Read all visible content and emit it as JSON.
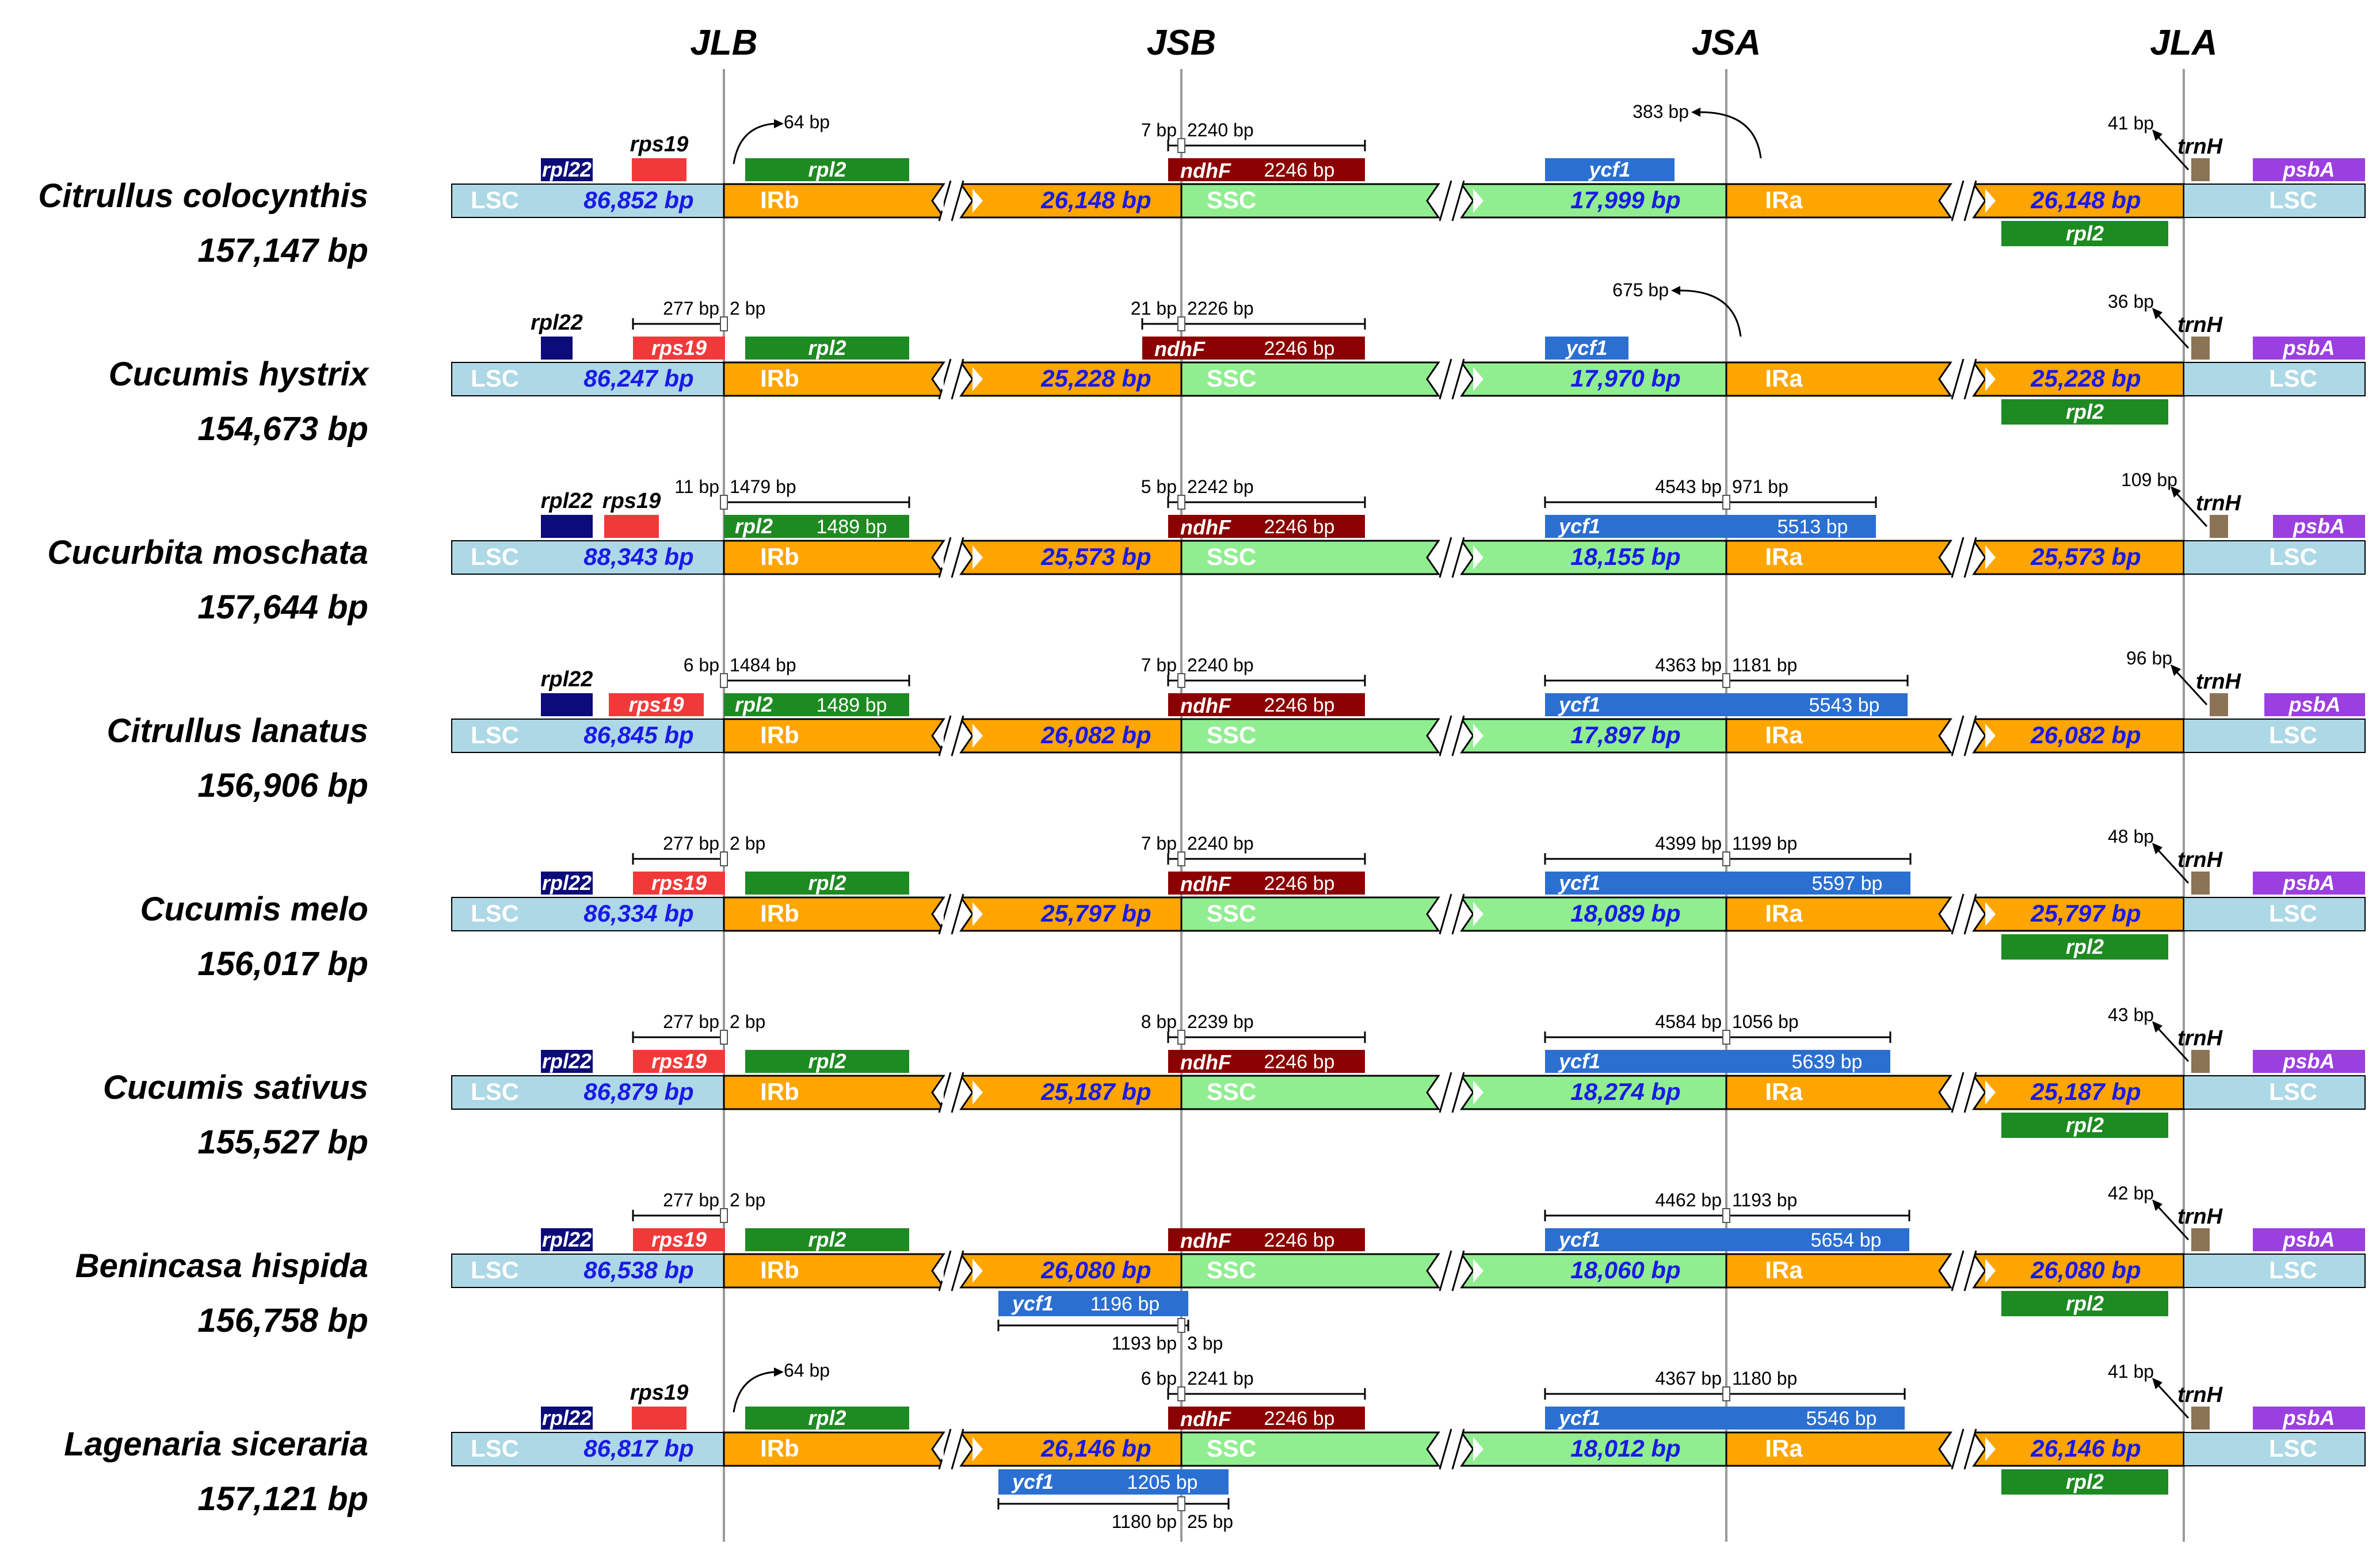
{
  "junctions": [
    "JLB",
    "JSB",
    "JSA",
    "JLA"
  ],
  "colors": {
    "LSC": "#add8e6",
    "IR": "#ffa500",
    "SSC": "#90ee90",
    "rpl22": "#0b0b7a",
    "rps19": "#f03a3a",
    "rpl2": "#1e8a22",
    "ndhF": "#8b0000",
    "ycf1": "#2b6fd1",
    "trnH": "#8b7355",
    "psbA": "#9b3fe0",
    "number": "#1a1ae6"
  },
  "region_labels": {
    "lsc": "LSC",
    "irb": "IRb",
    "ssc": "SSC",
    "ira": "IRa"
  },
  "species": [
    {
      "name": "Citrullus colocynthis",
      "size": "157,147 bp",
      "lsc": "86,852 bp",
      "irb": "26,148 bp",
      "ssc": "17,999 bp",
      "ira": "26,148 bp",
      "jlb": {
        "rpl22": "rpl22",
        "rps19_label": "rps19",
        "rpl2": "rpl2",
        "arrow": "64 bp"
      },
      "jsb": {
        "left": "7 bp",
        "right": "2240 bp",
        "ndhF": "ndhF",
        "ndhF_len": "2246 bp"
      },
      "jsa": {
        "ycf1": "ycf1",
        "arrow": "383 bp"
      },
      "jla": {
        "dist": "41 bp",
        "trnH": "trnH",
        "psbA": "psbA",
        "rpl2": "rpl2"
      }
    },
    {
      "name": "Cucumis hystrix",
      "size": "154,673 bp",
      "lsc": "86,247 bp",
      "irb": "25,228 bp",
      "ssc": "17,970 bp",
      "ira": "25,228 bp",
      "jlb": {
        "rpl22_label": "rpl22",
        "rps19": "rps19",
        "rpl2": "rpl2",
        "left": "277 bp",
        "right": "2 bp"
      },
      "jsb": {
        "left": "21 bp",
        "right": "2226 bp",
        "ndhF": "ndhF",
        "ndhF_len": "2246 bp"
      },
      "jsa": {
        "ycf1": "ycf1",
        "arrow": "675 bp"
      },
      "jla": {
        "dist": "36 bp",
        "trnH": "trnH",
        "psbA": "psbA",
        "rpl2": "rpl2"
      }
    },
    {
      "name": "Cucurbita moschata",
      "size": "157,644 bp",
      "lsc": "88,343 bp",
      "irb": "25,573 bp",
      "ssc": "18,155 bp",
      "ira": "25,573 bp",
      "jlb": {
        "rpl22_label": "rpl22",
        "rps19_label": "rps19",
        "rpl2": "rpl2",
        "rpl2_len": "1489 bp",
        "left": "11 bp",
        "right": "1479 bp"
      },
      "jsb": {
        "left": "5 bp",
        "right": "2242 bp",
        "ndhF": "ndhF",
        "ndhF_len": "2246 bp"
      },
      "jsa": {
        "ycf1": "ycf1",
        "ycf1_len": "5513 bp",
        "left": "4543 bp",
        "right": "971 bp"
      },
      "jla": {
        "dist": "109 bp",
        "trnH": "trnH",
        "psbA": "psbA"
      }
    },
    {
      "name": "Citrullus lanatus",
      "size": "156,906 bp",
      "lsc": "86,845 bp",
      "irb": "26,082 bp",
      "ssc": "17,897 bp",
      "ira": "26,082 bp",
      "jlb": {
        "rpl22_label": "rpl22",
        "rps19": "rps19",
        "rpl2": "rpl2",
        "rpl2_len": "1489 bp",
        "left": "6 bp",
        "right": "1484 bp"
      },
      "jsb": {
        "left": "7 bp",
        "right": "2240 bp",
        "ndhF": "ndhF",
        "ndhF_len": "2246 bp"
      },
      "jsa": {
        "ycf1": "ycf1",
        "ycf1_len": "5543 bp",
        "left": "4363 bp",
        "right": "1181 bp"
      },
      "jla": {
        "dist": "96 bp",
        "trnH": "trnH",
        "psbA": "psbA"
      }
    },
    {
      "name": "Cucumis melo",
      "size": "156,017 bp",
      "lsc": "86,334 bp",
      "irb": "25,797 bp",
      "ssc": "18,089 bp",
      "ira": "25,797 bp",
      "jlb": {
        "rpl22": "rpl22",
        "rps19": "rps19",
        "rpl2": "rpl2",
        "left": "277 bp",
        "right": "2 bp"
      },
      "jsb": {
        "left": "7 bp",
        "right": "2240 bp",
        "ndhF": "ndhF",
        "ndhF_len": "2246 bp"
      },
      "jsa": {
        "ycf1": "ycf1",
        "ycf1_len": "5597 bp",
        "left": "4399 bp",
        "right": "1199 bp"
      },
      "jla": {
        "dist": "48 bp",
        "trnH": "trnH",
        "psbA": "psbA",
        "rpl2": "rpl2"
      }
    },
    {
      "name": "Cucumis sativus",
      "size": "155,527 bp",
      "lsc": "86,879 bp",
      "irb": "25,187 bp",
      "ssc": "18,274 bp",
      "ira": "25,187 bp",
      "jlb": {
        "rpl22": "rpl22",
        "rps19": "rps19",
        "rpl2": "rpl2",
        "left": "277 bp",
        "right": "2 bp"
      },
      "jsb": {
        "left": "8 bp",
        "right": "2239 bp",
        "ndhF": "ndhF",
        "ndhF_len": "2246 bp"
      },
      "jsa": {
        "ycf1": "ycf1",
        "ycf1_len": "5639 bp",
        "left": "4584 bp",
        "right": "1056 bp"
      },
      "jla": {
        "dist": "43 bp",
        "trnH": "trnH",
        "psbA": "psbA",
        "rpl2": "rpl2"
      }
    },
    {
      "name": "Benincasa hispida",
      "size": "156,758 bp",
      "lsc": "86,538 bp",
      "irb": "26,080 bp",
      "ssc": "18,060 bp",
      "ira": "26,080 bp",
      "jlb": {
        "rpl22": "rpl22",
        "rps19": "rps19",
        "rpl2": "rpl2",
        "left": "277 bp",
        "right": "2 bp"
      },
      "jsb": {
        "ndhF": "ndhF",
        "ndhF_len": "2246 bp",
        "ycf1": "ycf1",
        "ycf1_len": "1196 bp",
        "below_left": "1193 bp",
        "below_right": "3 bp"
      },
      "jsa": {
        "ycf1": "ycf1",
        "ycf1_len": "5654 bp",
        "left": "4462 bp",
        "right": "1193 bp"
      },
      "jla": {
        "dist": "42 bp",
        "trnH": "trnH",
        "psbA": "psbA",
        "rpl2": "rpl2"
      }
    },
    {
      "name": "Lagenaria siceraria",
      "size": "157,121 bp",
      "lsc": "86,817 bp",
      "irb": "26,146 bp",
      "ssc": "18,012 bp",
      "ira": "26,146 bp",
      "jlb": {
        "rpl22": "rpl22",
        "rps19_label": "rps19",
        "rpl2": "rpl2",
        "arrow": "64 bp"
      },
      "jsb": {
        "left": "6 bp",
        "right": "2241 bp",
        "ndhF": "ndhF",
        "ndhF_len": "2246 bp",
        "ycf1": "ycf1",
        "ycf1_len": "1205 bp",
        "below_left": "1180 bp",
        "below_right": "25 bp"
      },
      "jsa": {
        "ycf1": "ycf1",
        "ycf1_len": "5546 bp",
        "left": "4367 bp",
        "right": "1180 bp"
      },
      "jla": {
        "dist": "41 bp",
        "trnH": "trnH",
        "psbA": "psbA",
        "rpl2": "rpl2"
      }
    }
  ]
}
